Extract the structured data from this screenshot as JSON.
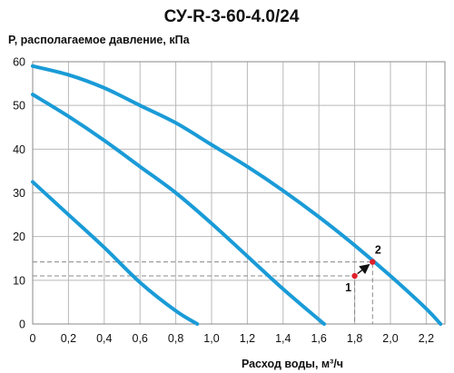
{
  "chart_data": {
    "type": "line",
    "title": "СУ-R-3-60-4.0/24",
    "ylabel": "P, располагаемое давление, кПа",
    "xlabel": "Расход воды, м³/ч",
    "xlim": [
      0,
      2.3
    ],
    "ylim": [
      0,
      60
    ],
    "xticks": [
      "0",
      "0,2",
      "0,4",
      "0,6",
      "0,8",
      "1,0",
      "1,2",
      "1,4",
      "1,6",
      "1,8",
      "2,0",
      "2,2"
    ],
    "yticks": [
      "0",
      "10",
      "20",
      "30",
      "40",
      "50",
      "60"
    ],
    "grid": true,
    "color": "#1a9bd7",
    "series": [
      {
        "x": [
          0,
          0.2,
          0.4,
          0.6,
          0.8,
          0.92
        ],
        "y": [
          32.5,
          25.0,
          17.5,
          9.5,
          3.0,
          0
        ]
      },
      {
        "x": [
          0,
          0.2,
          0.4,
          0.6,
          0.8,
          1.0,
          1.2,
          1.4,
          1.6,
          1.63
        ],
        "y": [
          52.5,
          47.5,
          42.0,
          36.0,
          30.0,
          23.0,
          15.5,
          8.0,
          1.0,
          0
        ]
      },
      {
        "x": [
          0,
          0.2,
          0.4,
          0.6,
          0.8,
          1.0,
          1.2,
          1.4,
          1.6,
          1.8,
          2.0,
          2.2,
          2.28
        ],
        "y": [
          59.0,
          57.0,
          54.0,
          50.0,
          46.0,
          41.0,
          36.0,
          30.5,
          24.5,
          18.0,
          11.0,
          3.5,
          0
        ]
      }
    ],
    "points": [
      {
        "label": "1",
        "x": 1.8,
        "y": 11.0,
        "color": "#e0202a"
      },
      {
        "label": "2",
        "x": 1.9,
        "y": 14.2,
        "color": "#e0202a"
      }
    ],
    "annotations": [
      "arrow from point 1 to point 2"
    ]
  }
}
